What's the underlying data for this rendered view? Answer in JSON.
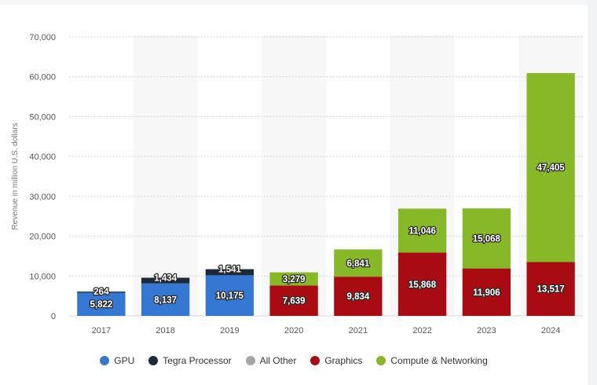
{
  "chart_data": {
    "type": "bar",
    "stacked": true,
    "categories": [
      "2017",
      "2018",
      "2019",
      "2020",
      "2021",
      "2022",
      "2023",
      "2024"
    ],
    "ylabel": "Revenue in million U.S. dollars",
    "xlabel": "",
    "ylim": [
      0,
      70000
    ],
    "yticks": [
      "0",
      "10,000",
      "20,000",
      "30,000",
      "40,000",
      "50,000",
      "60,000",
      "70,000"
    ],
    "yticks_values": [
      0,
      10000,
      20000,
      30000,
      40000,
      50000,
      60000,
      70000
    ],
    "grid": true,
    "legend_position": "bottom",
    "series": [
      {
        "name": "GPU",
        "color": "#3478d4",
        "values": [
          5822,
          8137,
          10175,
          null,
          null,
          null,
          null,
          null
        ],
        "labels": [
          "5,822",
          "8,137",
          "10,175",
          "",
          "",
          "",
          "",
          ""
        ]
      },
      {
        "name": "Tegra Processor",
        "color": "#1b2a3a",
        "values": [
          264,
          1434,
          1541,
          null,
          null,
          null,
          null,
          null
        ],
        "labels": [
          "264",
          "1,434",
          "1,541",
          "",
          "",
          "",
          "",
          ""
        ]
      },
      {
        "name": "All Other",
        "color": "#a6a6a6",
        "values": [
          null,
          null,
          null,
          null,
          null,
          null,
          null,
          null
        ],
        "labels": [
          "",
          "",
          "",
          "",
          "",
          "",
          "",
          ""
        ]
      },
      {
        "name": "Graphics",
        "color": "#a80c12",
        "values": [
          null,
          null,
          null,
          7639,
          9834,
          15868,
          11906,
          13517
        ],
        "labels": [
          "",
          "",
          "",
          "7,639",
          "9,834",
          "15,868",
          "11,906",
          "13,517"
        ]
      },
      {
        "name": "Compute & Networking",
        "color": "#86b828",
        "values": [
          null,
          null,
          null,
          3279,
          6841,
          11046,
          15068,
          47405
        ],
        "labels": [
          "",
          "",
          "",
          "3,279",
          "6,841",
          "11,046",
          "15,068",
          "47,405"
        ]
      }
    ]
  }
}
